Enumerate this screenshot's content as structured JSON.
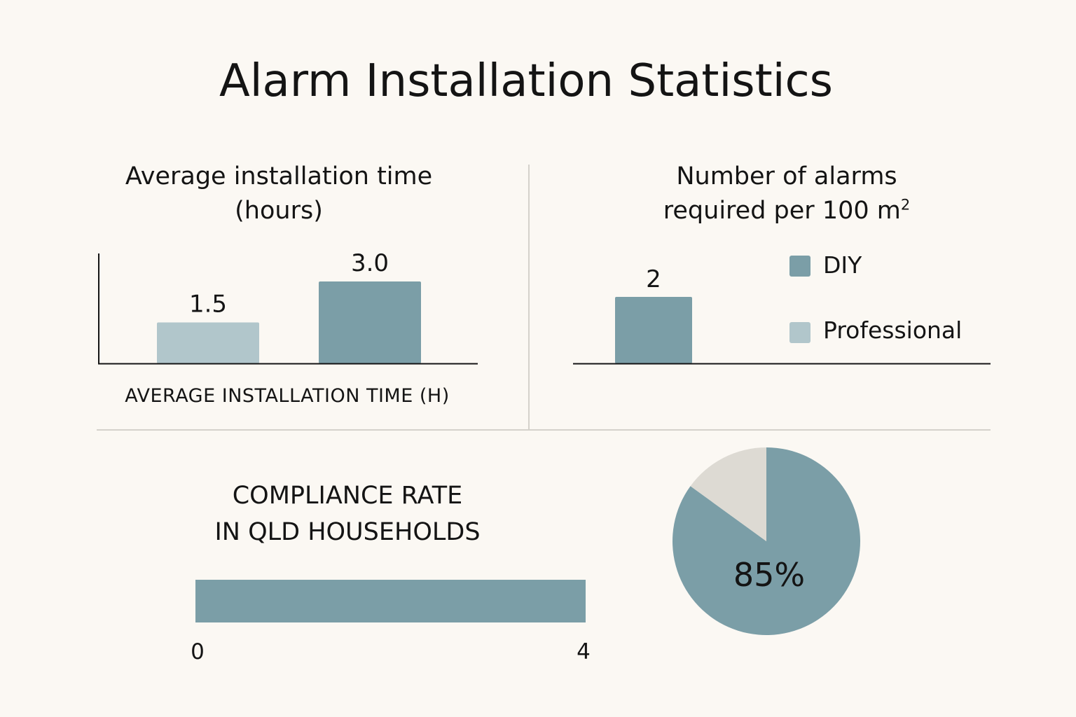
{
  "title": "Alarm Installation Statistics",
  "colors": {
    "background": "#fbf8f3",
    "diy": "#7b9ea7",
    "professional": "#b1c6cb",
    "pie_rest": "#dddad3",
    "axis": "#141414",
    "divider": "#d4d1cb"
  },
  "chart_data": [
    {
      "type": "bar",
      "title_line1": "Average installation time",
      "title_line2": "(hours)",
      "xlabel": "AVERAGE INSTALLATION TIME (H)",
      "ylim": [
        0,
        3.0
      ],
      "series": [
        {
          "name": "Professional",
          "color": "#b1c6cb",
          "value": 1.5,
          "label": "1.5"
        },
        {
          "name": "DIY",
          "color": "#7b9ea7",
          "value": 3.0,
          "label": "3.0"
        }
      ]
    },
    {
      "type": "bar",
      "title_line1": "Number of alarms",
      "title_line2_prefix": "required per 100 m",
      "title_line2_sup": "2",
      "ylim": [
        0,
        2.4
      ],
      "series": [
        {
          "name": "DIY",
          "color": "#7b9ea7",
          "value": 2,
          "label": "2"
        }
      ],
      "legend": [
        {
          "name": "DIY",
          "color": "#7b9ea7"
        },
        {
          "name": "Professional",
          "color": "#b1c6cb"
        }
      ],
      "legend_position": "right"
    },
    {
      "type": "bar",
      "title_line1": "COMPLIANCE RATE",
      "title_line2": "IN QLD HOUSEHOLDS",
      "orientation": "horizontal",
      "xlim": [
        0,
        4
      ],
      "tick_labels": [
        "0",
        "4"
      ],
      "value": 4,
      "color": "#7b9ea7"
    },
    {
      "type": "pie",
      "slices": [
        {
          "value": 85,
          "color": "#7b9ea7",
          "label": "85%"
        },
        {
          "value": 15,
          "color": "#dddad3"
        }
      ]
    }
  ]
}
